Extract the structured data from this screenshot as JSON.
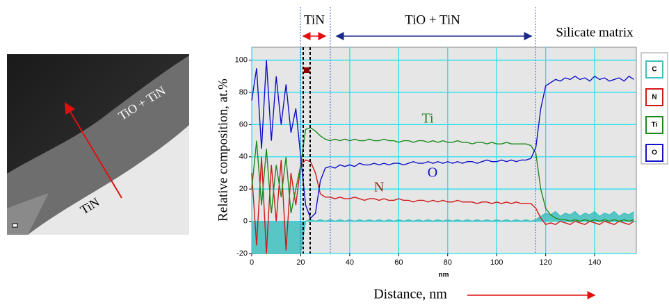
{
  "image": {
    "labels": [
      "TiO + TiN",
      "TiN"
    ]
  },
  "chart_data": {
    "type": "line",
    "ylabel": "Relative composition, at.%",
    "xlabel": "nm",
    "annotations": {
      "tin_region": "TiN",
      "tio_region": "TiO + TiN",
      "matrix_region": "Silicate matrix",
      "distance": "Distance, nm",
      "ti_label": "Ti",
      "o_label": "O",
      "n_label": "N"
    },
    "xlim": [
      0,
      157
    ],
    "ylim": [
      -20,
      108
    ],
    "xticks": [
      0,
      20,
      40,
      60,
      80,
      100,
      120,
      140
    ],
    "yticks": [
      -20,
      0,
      20,
      40,
      60,
      80,
      100
    ],
    "grid": true,
    "x": [
      0,
      2,
      4,
      6,
      8,
      10,
      12,
      14,
      16,
      18,
      20,
      22,
      24,
      26,
      28,
      30,
      32,
      34,
      36,
      38,
      40,
      42,
      44,
      46,
      48,
      50,
      52,
      54,
      56,
      58,
      60,
      62,
      64,
      66,
      68,
      70,
      72,
      74,
      76,
      78,
      80,
      82,
      84,
      86,
      88,
      90,
      92,
      94,
      96,
      98,
      100,
      102,
      104,
      106,
      108,
      110,
      112,
      114,
      116,
      118,
      120,
      122,
      124,
      126,
      128,
      130,
      132,
      134,
      136,
      138,
      140,
      142,
      144,
      146,
      148,
      150,
      152,
      154,
      156
    ],
    "series": [
      {
        "name": "C",
        "color": "#3fbfbf",
        "area": true,
        "values": [
          -20,
          -20,
          -20,
          -20,
          -20,
          -20,
          -20,
          -20,
          -20,
          -20,
          -20,
          0,
          1,
          0,
          1,
          0,
          1,
          0,
          1,
          0,
          1,
          0,
          1,
          0,
          1,
          0,
          1,
          0,
          1,
          0,
          1,
          0,
          1,
          0,
          1,
          0,
          1,
          0,
          1,
          0,
          1,
          0,
          1,
          0,
          1,
          0,
          1,
          0,
          1,
          0,
          1,
          0,
          1,
          0,
          1,
          0,
          1,
          0,
          1,
          3,
          5,
          4,
          6,
          3,
          5,
          4,
          6,
          3,
          5,
          4,
          6,
          3,
          5,
          4,
          6,
          3,
          5,
          4,
          6
        ]
      },
      {
        "name": "N",
        "color": "#d01818",
        "values": [
          30,
          -15,
          40,
          -20,
          35,
          0,
          38,
          -18,
          30,
          10,
          35,
          38,
          37,
          30,
          17,
          15,
          15,
          14,
          15,
          14,
          14,
          15,
          14,
          13,
          14,
          14,
          13,
          14,
          13,
          13,
          14,
          13,
          13,
          12,
          13,
          13,
          12,
          13,
          12,
          13,
          12,
          12,
          13,
          12,
          12,
          12,
          11,
          12,
          12,
          11,
          12,
          11,
          12,
          11,
          12,
          11,
          11,
          11,
          8,
          2,
          -2,
          -1,
          -2,
          0,
          -1,
          -2,
          0,
          -1,
          -2,
          0,
          -1,
          -2,
          0,
          -1,
          -2,
          0,
          -1,
          -2,
          0
        ]
      },
      {
        "name": "Ti",
        "color": "#1e8a1e",
        "values": [
          20,
          50,
          10,
          45,
          5,
          35,
          15,
          40,
          5,
          20,
          35,
          57,
          58,
          56,
          53,
          51,
          50,
          51,
          50,
          51,
          50,
          51,
          50,
          50,
          51,
          50,
          50,
          51,
          50,
          50,
          49,
          50,
          50,
          49,
          50,
          50,
          49,
          50,
          49,
          50,
          49,
          49,
          50,
          49,
          49,
          48,
          49,
          49,
          48,
          49,
          48,
          48,
          49,
          48,
          48,
          48,
          48,
          47,
          42,
          20,
          8,
          4,
          2,
          1,
          1,
          0,
          1,
          0,
          1,
          0,
          1,
          0,
          1,
          0,
          1,
          0,
          1,
          0,
          1
        ]
      },
      {
        "name": "O",
        "color": "#1010c8",
        "values": [
          75,
          95,
          45,
          100,
          50,
          90,
          60,
          85,
          55,
          70,
          40,
          10,
          2,
          5,
          25,
          33,
          34,
          33,
          35,
          34,
          35,
          34,
          36,
          35,
          35,
          36,
          35,
          36,
          35,
          36,
          36,
          35,
          36,
          37,
          36,
          36,
          37,
          36,
          37,
          36,
          37,
          36,
          37,
          36,
          37,
          37,
          36,
          37,
          38,
          37,
          37,
          38,
          37,
          38,
          37,
          38,
          38,
          39,
          46,
          70,
          84,
          86,
          88,
          87,
          89,
          88,
          90,
          88,
          89,
          87,
          90,
          88,
          89,
          87,
          88,
          89,
          87,
          90,
          88
        ]
      }
    ]
  }
}
